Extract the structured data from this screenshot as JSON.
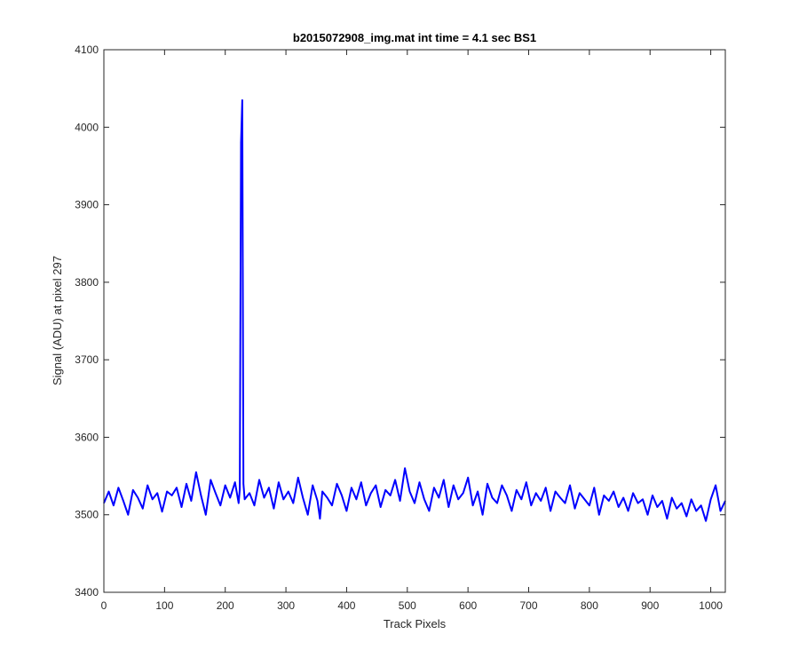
{
  "chart_data": {
    "type": "line",
    "title": "b2015072908_img.mat int time = 4.1 sec   BS1",
    "xlabel": "Track Pixels",
    "ylabel": "Signal (ADU) at pixel 297",
    "xlim": [
      0,
      1024
    ],
    "ylim": [
      3400,
      4100
    ],
    "xticks": [
      0,
      100,
      200,
      300,
      400,
      500,
      600,
      700,
      800,
      900,
      1000
    ],
    "yticks": [
      3400,
      3500,
      3600,
      3700,
      3800,
      3900,
      4000,
      4100
    ],
    "grid": false,
    "line_color": "#0000ff",
    "series": [
      {
        "x": [
          0,
          8,
          16,
          24,
          32,
          40,
          48,
          56,
          64,
          72,
          80,
          88,
          96,
          104,
          112,
          120,
          128,
          136,
          144,
          152,
          160,
          168,
          176,
          184,
          192,
          200,
          208,
          216,
          222,
          224,
          226,
          228,
          230,
          232,
          240,
          248,
          256,
          264,
          272,
          280,
          288,
          296,
          304,
          312,
          320,
          328,
          336,
          344,
          352,
          356,
          360,
          368,
          376,
          384,
          392,
          400,
          408,
          416,
          424,
          432,
          440,
          448,
          456,
          464,
          472,
          480,
          488,
          496,
          504,
          512,
          520,
          528,
          536,
          544,
          552,
          560,
          568,
          576,
          584,
          592,
          600,
          608,
          616,
          624,
          632,
          640,
          648,
          656,
          664,
          672,
          680,
          688,
          696,
          704,
          712,
          720,
          728,
          736,
          744,
          752,
          760,
          768,
          776,
          784,
          792,
          800,
          808,
          816,
          824,
          832,
          840,
          848,
          856,
          864,
          872,
          880,
          888,
          896,
          904,
          912,
          920,
          928,
          936,
          944,
          952,
          960,
          968,
          976,
          984,
          992,
          1000,
          1008,
          1016,
          1024
        ],
        "y": [
          3515,
          3530,
          3512,
          3535,
          3518,
          3500,
          3532,
          3522,
          3508,
          3538,
          3520,
          3528,
          3504,
          3530,
          3525,
          3535,
          3510,
          3540,
          3518,
          3555,
          3525,
          3500,
          3545,
          3528,
          3512,
          3538,
          3522,
          3542,
          3515,
          3533,
          3980,
          4035,
          3540,
          3520,
          3528,
          3512,
          3545,
          3522,
          3535,
          3508,
          3542,
          3520,
          3530,
          3515,
          3548,
          3522,
          3500,
          3538,
          3518,
          3495,
          3530,
          3522,
          3512,
          3540,
          3525,
          3505,
          3535,
          3520,
          3542,
          3512,
          3528,
          3538,
          3510,
          3532,
          3525,
          3545,
          3518,
          3560,
          3530,
          3515,
          3542,
          3520,
          3505,
          3535,
          3522,
          3545,
          3510,
          3538,
          3520,
          3528,
          3548,
          3512,
          3530,
          3500,
          3540,
          3522,
          3515,
          3538,
          3525,
          3505,
          3532,
          3520,
          3542,
          3512,
          3528,
          3518,
          3535,
          3505,
          3530,
          3522,
          3515,
          3538,
          3508,
          3528,
          3520,
          3512,
          3535,
          3500,
          3525,
          3518,
          3530,
          3510,
          3522,
          3505,
          3528,
          3515,
          3520,
          3500,
          3525,
          3510,
          3518,
          3495,
          3522,
          3508,
          3515,
          3498,
          3520,
          3505,
          3512,
          3492,
          3520,
          3538,
          3505,
          3518
        ]
      }
    ]
  }
}
